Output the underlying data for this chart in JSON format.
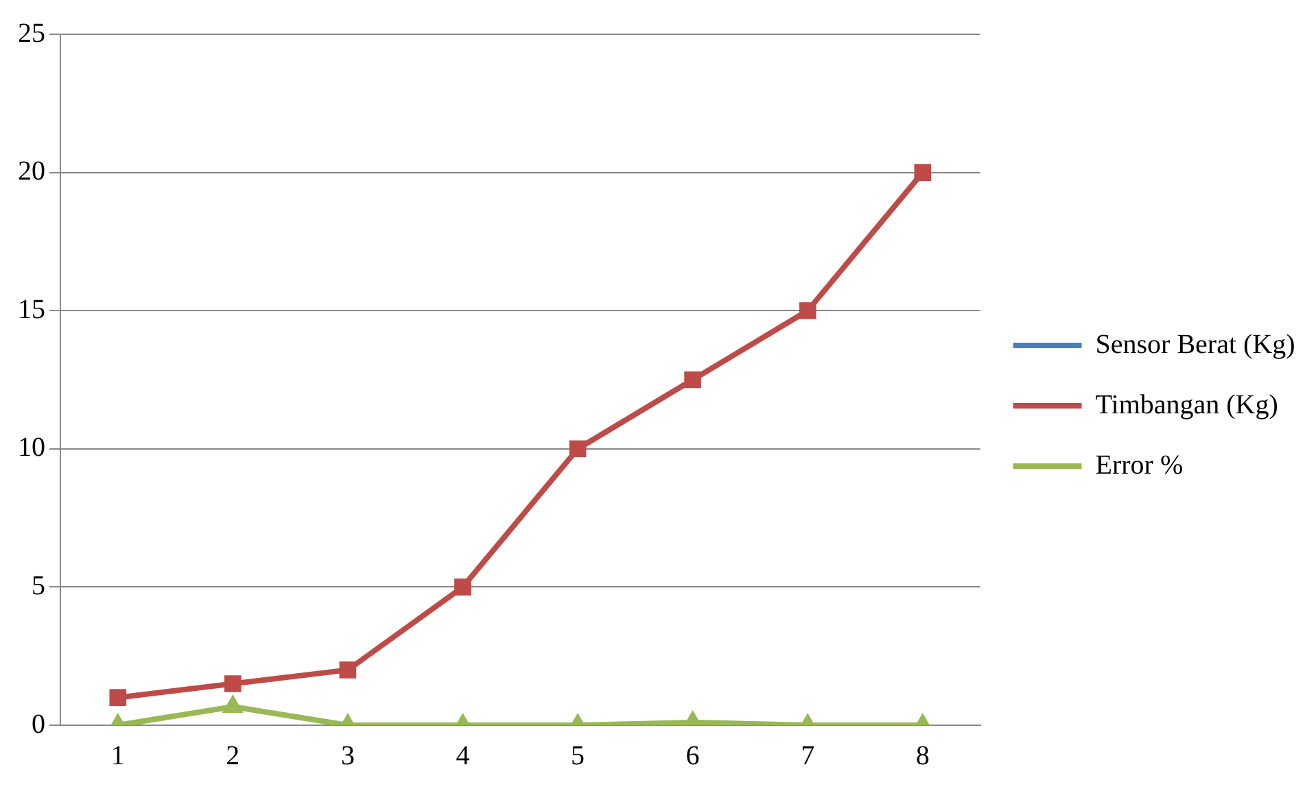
{
  "chart_data": {
    "type": "line",
    "categories": [
      "1",
      "2",
      "3",
      "4",
      "5",
      "6",
      "7",
      "8"
    ],
    "series": [
      {
        "name": "Sensor Berat (Kg)",
        "color": "#4a7ebb",
        "marker": "diamond",
        "values": [
          null,
          null,
          null,
          null,
          null,
          null,
          null,
          null
        ]
      },
      {
        "name": "Timbangan (Kg)",
        "color": "#be4b48",
        "marker": "square",
        "values": [
          1,
          1.5,
          2,
          5,
          10,
          12.5,
          15,
          20
        ]
      },
      {
        "name": "Error %",
        "color": "#98b954",
        "marker": "triangle",
        "values": [
          0,
          0.67,
          0,
          0,
          0,
          0.1,
          0,
          0
        ]
      }
    ],
    "ylim": [
      0,
      25
    ],
    "yticks": [
      0,
      5,
      10,
      15,
      20,
      25
    ],
    "grid": "y",
    "legend": "right",
    "line_style": "solid"
  }
}
